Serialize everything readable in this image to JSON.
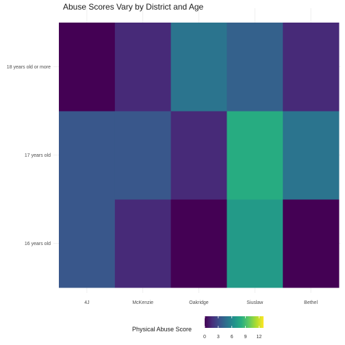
{
  "chart_data": {
    "type": "heatmap",
    "title": "Abuse Scores Vary by District and Age",
    "xlabel": "",
    "ylabel": "",
    "x_categories": [
      "4J",
      "McKenzie",
      "Oakridge",
      "Siuslaw",
      "Bethel"
    ],
    "y_categories": [
      "16 years old",
      "17 years old",
      "18 years old or more"
    ],
    "values": [
      [
        3.5,
        1.5,
        0.0,
        7.0,
        0.0
      ],
      [
        3.5,
        3.5,
        1.5,
        8.0,
        5.0
      ],
      [
        0.0,
        1.5,
        5.0,
        4.0,
        1.5
      ]
    ],
    "legend": {
      "title": "Physical Abuse Score",
      "ticks": [
        0,
        3,
        6,
        9,
        12
      ],
      "range": [
        0,
        13
      ],
      "palette": "viridis",
      "position": "bottom"
    },
    "grid": true
  }
}
